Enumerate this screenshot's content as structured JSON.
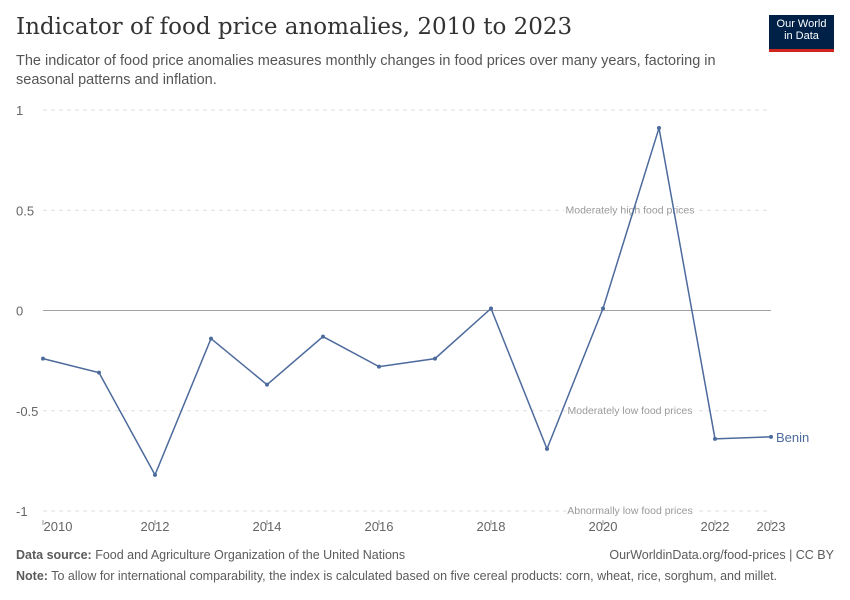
{
  "title": "Indicator of food price anomalies, 2010 to 2023",
  "subtitle": "The indicator of food price anomalies measures monthly changes in food prices over many years, factoring in seasonal patterns and inflation.",
  "logo": {
    "line1": "Our World",
    "line2": "in Data"
  },
  "chart_data": {
    "type": "line",
    "x": [
      2010,
      2011,
      2012,
      2013,
      2014,
      2015,
      2016,
      2017,
      2018,
      2019,
      2020,
      2021,
      2022,
      2023
    ],
    "series": [
      {
        "name": "Benin",
        "color": "#4c6a9c",
        "values": [
          -0.24,
          -0.31,
          -0.82,
          -0.14,
          -0.37,
          -0.13,
          -0.28,
          -0.24,
          0.01,
          -0.69,
          0.01,
          0.91,
          -0.64,
          -0.63
        ]
      }
    ],
    "ylim": [
      -1,
      1
    ],
    "yticks": [
      {
        "v": 1,
        "label": "1"
      },
      {
        "v": 0.5,
        "label": "0.5"
      },
      {
        "v": 0,
        "label": "0"
      },
      {
        "v": -0.5,
        "label": "-0.5"
      },
      {
        "v": -1,
        "label": "-1"
      }
    ],
    "xticks": [
      {
        "v": 2010,
        "label": "2010"
      },
      {
        "v": 2012,
        "label": "2012"
      },
      {
        "v": 2014,
        "label": "2014"
      },
      {
        "v": 2016,
        "label": "2016"
      },
      {
        "v": 2018,
        "label": "2018"
      },
      {
        "v": 2020,
        "label": "2020"
      },
      {
        "v": 2022,
        "label": "2022"
      },
      {
        "v": 2023,
        "label": "2023"
      }
    ],
    "annotations": [
      {
        "v": 0.5,
        "label": "Moderately high food prices"
      },
      {
        "v": -0.5,
        "label": "Moderately low food prices"
      },
      {
        "v": -1,
        "label": "Abnormally low food prices"
      }
    ],
    "grid": true
  },
  "footer": {
    "source_label": "Data source:",
    "source": "Food and Agriculture Organization of the United Nations",
    "url": "OurWorldinData.org/food-prices | CC BY",
    "note_label": "Note:",
    "note": "To allow for international comparability, the index is calculated based on five cereal products: corn, wheat, rice, sorghum, and millet."
  }
}
